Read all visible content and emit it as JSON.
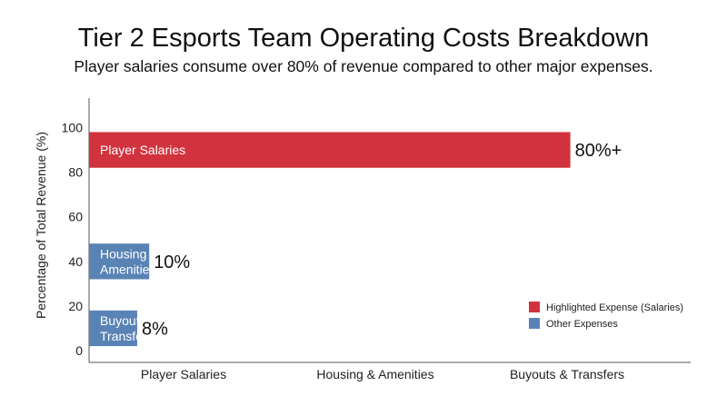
{
  "colors": {
    "highlight": "#D1333E",
    "other": "#5A83B5",
    "axis": "#555555"
  },
  "chart_data": {
    "type": "bar",
    "orientation": "horizontal",
    "title": "Tier 2 Esports Team Operating Costs Breakdown",
    "subtitle": "Player salaries consume over 80% of revenue compared to other major expenses.",
    "ylabel": "Percentage of Total Revenue (%)",
    "xlabel": "",
    "categories": [
      "Player Salaries",
      "Housing & Amenities",
      "Buyouts & Transfers"
    ],
    "bar_labels": [
      [
        "Player Salaries"
      ],
      [
        "Housing &",
        "Amenities"
      ],
      [
        "Buyouts &",
        "Transfers"
      ]
    ],
    "values": [
      80,
      10,
      8
    ],
    "value_labels": [
      "80%+",
      "10%",
      "8%"
    ],
    "bar_groups": [
      "Highlighted Expense (Salaries)",
      "Other Expenses",
      "Other Expenses"
    ],
    "bar_level_ranges": [
      [
        82,
        98
      ],
      [
        32,
        48
      ],
      [
        2,
        18
      ]
    ],
    "yticks": [
      0,
      20,
      40,
      60,
      80,
      100
    ],
    "ylim": [
      0,
      110
    ],
    "grid": false,
    "legend": {
      "position": "bottom-right",
      "entries": [
        "Highlighted Expense (Salaries)",
        "Other Expenses"
      ]
    }
  }
}
